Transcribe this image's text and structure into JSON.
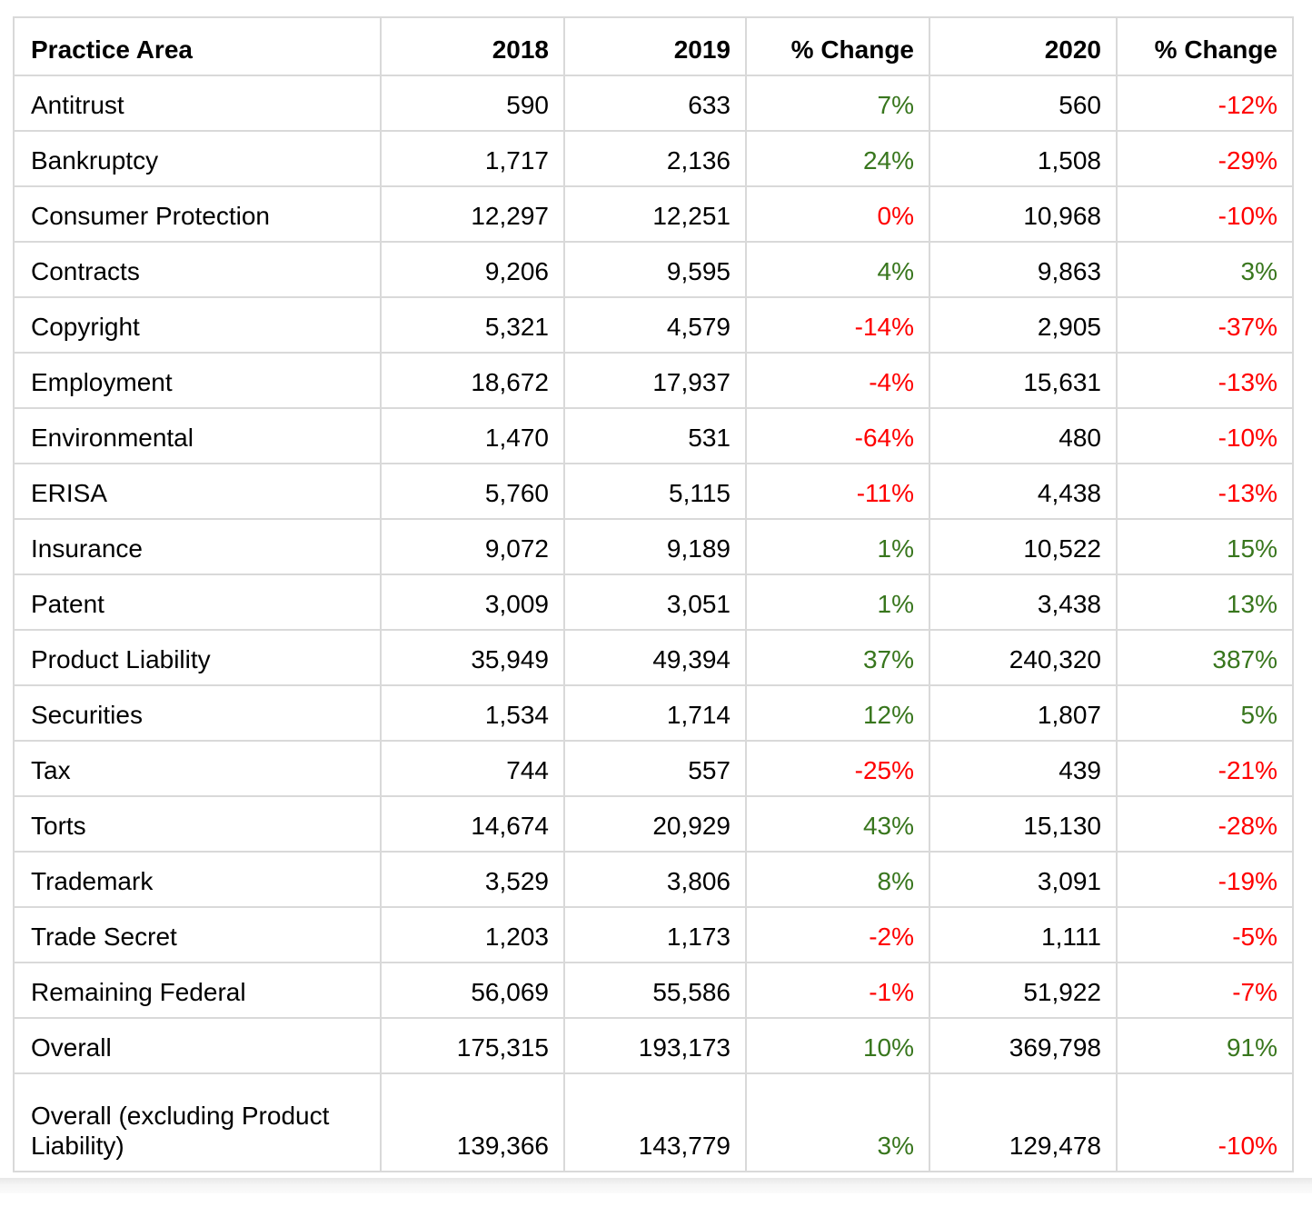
{
  "chart_data": {
    "type": "table",
    "columns": [
      "Practice Area",
      "2018",
      "2019",
      "% Change",
      "2020",
      "% Change"
    ],
    "rows": [
      {
        "area": "Antitrust",
        "y2018": "590",
        "y2019": "633",
        "change_19": "7%",
        "change_19_dir": "pos",
        "y2020": "560",
        "change_20": "-12%",
        "change_20_dir": "neg",
        "tall": false
      },
      {
        "area": "Bankruptcy",
        "y2018": "1,717",
        "y2019": "2,136",
        "change_19": "24%",
        "change_19_dir": "pos",
        "y2020": "1,508",
        "change_20": "-29%",
        "change_20_dir": "neg",
        "tall": false
      },
      {
        "area": "Consumer Protection",
        "y2018": "12,297",
        "y2019": "12,251",
        "change_19": "0%",
        "change_19_dir": "neg",
        "y2020": "10,968",
        "change_20": "-10%",
        "change_20_dir": "neg",
        "tall": false
      },
      {
        "area": "Contracts",
        "y2018": "9,206",
        "y2019": "9,595",
        "change_19": "4%",
        "change_19_dir": "pos",
        "y2020": "9,863",
        "change_20": "3%",
        "change_20_dir": "pos",
        "tall": false
      },
      {
        "area": "Copyright",
        "y2018": "5,321",
        "y2019": "4,579",
        "change_19": "-14%",
        "change_19_dir": "neg",
        "y2020": "2,905",
        "change_20": "-37%",
        "change_20_dir": "neg",
        "tall": false
      },
      {
        "area": "Employment",
        "y2018": "18,672",
        "y2019": "17,937",
        "change_19": "-4%",
        "change_19_dir": "neg",
        "y2020": "15,631",
        "change_20": "-13%",
        "change_20_dir": "neg",
        "tall": false
      },
      {
        "area": "Environmental",
        "y2018": "1,470",
        "y2019": "531",
        "change_19": "-64%",
        "change_19_dir": "neg",
        "y2020": "480",
        "change_20": "-10%",
        "change_20_dir": "neg",
        "tall": false
      },
      {
        "area": "ERISA",
        "y2018": "5,760",
        "y2019": "5,115",
        "change_19": "-11%",
        "change_19_dir": "neg",
        "y2020": "4,438",
        "change_20": "-13%",
        "change_20_dir": "neg",
        "tall": false
      },
      {
        "area": "Insurance",
        "y2018": "9,072",
        "y2019": "9,189",
        "change_19": "1%",
        "change_19_dir": "pos",
        "y2020": "10,522",
        "change_20": "15%",
        "change_20_dir": "pos",
        "tall": false
      },
      {
        "area": "Patent",
        "y2018": "3,009",
        "y2019": "3,051",
        "change_19": "1%",
        "change_19_dir": "pos",
        "y2020": "3,438",
        "change_20": "13%",
        "change_20_dir": "pos",
        "tall": false
      },
      {
        "area": "Product Liability",
        "y2018": "35,949",
        "y2019": "49,394",
        "change_19": "37%",
        "change_19_dir": "pos",
        "y2020": "240,320",
        "change_20": "387%",
        "change_20_dir": "pos",
        "tall": false
      },
      {
        "area": "Securities",
        "y2018": "1,534",
        "y2019": "1,714",
        "change_19": "12%",
        "change_19_dir": "pos",
        "y2020": "1,807",
        "change_20": "5%",
        "change_20_dir": "pos",
        "tall": false
      },
      {
        "area": "Tax",
        "y2018": "744",
        "y2019": "557",
        "change_19": "-25%",
        "change_19_dir": "neg",
        "y2020": "439",
        "change_20": "-21%",
        "change_20_dir": "neg",
        "tall": false
      },
      {
        "area": "Torts",
        "y2018": "14,674",
        "y2019": "20,929",
        "change_19": "43%",
        "change_19_dir": "pos",
        "y2020": "15,130",
        "change_20": "-28%",
        "change_20_dir": "neg",
        "tall": false
      },
      {
        "area": "Trademark",
        "y2018": "3,529",
        "y2019": "3,806",
        "change_19": "8%",
        "change_19_dir": "pos",
        "y2020": "3,091",
        "change_20": "-19%",
        "change_20_dir": "neg",
        "tall": false
      },
      {
        "area": "Trade Secret",
        "y2018": "1,203",
        "y2019": "1,173",
        "change_19": "-2%",
        "change_19_dir": "neg",
        "y2020": "1,111",
        "change_20": "-5%",
        "change_20_dir": "neg",
        "tall": false
      },
      {
        "area": "Remaining Federal",
        "y2018": "56,069",
        "y2019": "55,586",
        "change_19": "-1%",
        "change_19_dir": "neg",
        "y2020": "51,922",
        "change_20": "-7%",
        "change_20_dir": "neg",
        "tall": false
      },
      {
        "area": "Overall",
        "y2018": "175,315",
        "y2019": "193,173",
        "change_19": "10%",
        "change_19_dir": "pos",
        "y2020": "369,798",
        "change_20": "91%",
        "change_20_dir": "pos",
        "tall": false
      },
      {
        "area": "Overall (excluding Product Liability)",
        "y2018": "139,366",
        "y2019": "143,779",
        "change_19": "3%",
        "change_19_dir": "pos",
        "y2020": "129,478",
        "change_20": "-10%",
        "change_20_dir": "neg",
        "tall": true
      }
    ],
    "title": "",
    "legend_position": "none",
    "grid": true
  },
  "colors": {
    "positive_change": "#38761d",
    "negative_change": "#ff0000",
    "grid_border": "#d9d9d9",
    "text": "#000000",
    "footer_strip_top": "#e7e7e7",
    "footer_strip_bottom": "#fbfbfb"
  }
}
